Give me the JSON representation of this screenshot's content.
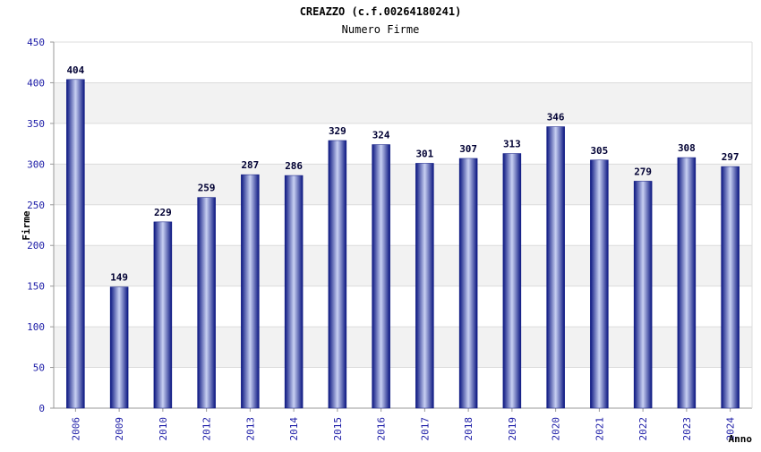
{
  "chart_data": {
    "type": "bar",
    "title": "CREAZZO (c.f.00264180241)",
    "subtitle": "Numero Firme",
    "xlabel": "Anno",
    "ylabel": "Firme",
    "categories": [
      "2006",
      "2009",
      "2010",
      "2012",
      "2013",
      "2014",
      "2015",
      "2016",
      "2017",
      "2018",
      "2019",
      "2020",
      "2021",
      "2022",
      "2023",
      "2024"
    ],
    "values": [
      404,
      149,
      229,
      259,
      287,
      286,
      329,
      324,
      301,
      307,
      313,
      346,
      305,
      279,
      308,
      297
    ],
    "ylim": [
      0,
      450
    ],
    "yticks": [
      0,
      50,
      100,
      150,
      200,
      250,
      300,
      350,
      400,
      450
    ],
    "grid": true,
    "legend": "none",
    "colors": {
      "bar_dark": "#0a1580",
      "bar_light": "#c8d0f2",
      "band": "#f2f2f2",
      "tick_text": "#1a1aa6"
    }
  }
}
